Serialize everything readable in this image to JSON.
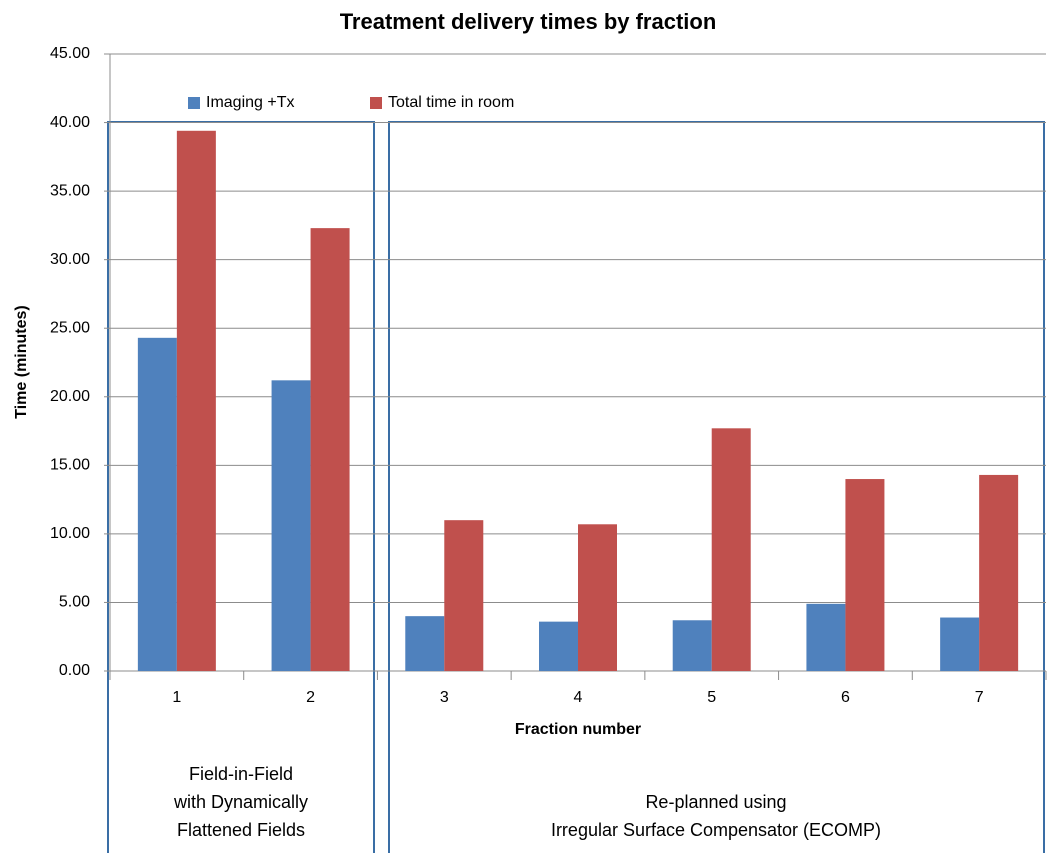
{
  "chart_data": {
    "type": "bar",
    "title": "Treatment delivery times by fraction",
    "x_label": "Fraction number",
    "y_label": "Time (minutes)",
    "categories": [
      "1",
      "2",
      "3",
      "4",
      "5",
      "6",
      "7"
    ],
    "series": [
      {
        "name": "Imaging +Tx",
        "color": "#4f81bd",
        "values": [
          24.3,
          21.2,
          4.0,
          3.6,
          3.7,
          4.9,
          3.9
        ]
      },
      {
        "name": "Total time in room",
        "color": "#c0504d",
        "values": [
          39.4,
          32.3,
          11.0,
          10.7,
          17.7,
          14.0,
          14.3
        ]
      }
    ],
    "ylim": [
      0,
      45
    ],
    "yticks": [
      {
        "value": 0,
        "label": "0.00"
      },
      {
        "value": 5,
        "label": "5.00"
      },
      {
        "value": 10,
        "label": "10.00"
      },
      {
        "value": 15,
        "label": "15.00"
      },
      {
        "value": 20,
        "label": "20.00"
      },
      {
        "value": 25,
        "label": "25.00"
      },
      {
        "value": 30,
        "label": "30.00"
      },
      {
        "value": 35,
        "label": "35.00"
      },
      {
        "value": 40,
        "label": "40.00"
      },
      {
        "value": 45,
        "label": "45.00"
      }
    ],
    "grid": true,
    "legend": "top",
    "annotations": [
      {
        "lines": [
          "Field-in-Field",
          "with Dynamically",
          "Flattened Fields"
        ]
      },
      {
        "lines": [
          "Re-planned using",
          "Irregular Surface Compensator (ECOMP)"
        ]
      }
    ]
  }
}
